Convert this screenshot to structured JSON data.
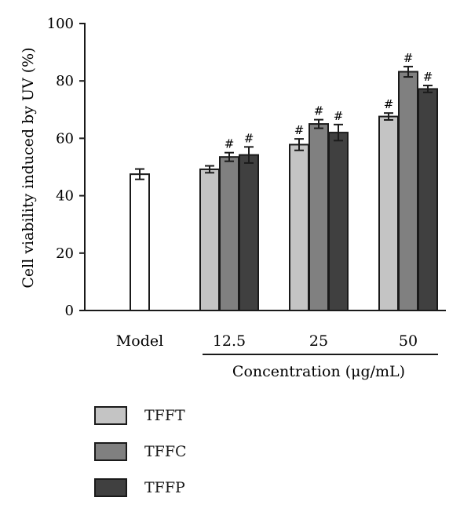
{
  "chart_data": {
    "type": "bar",
    "ylabel": "Cell viability induced by UV (%)",
    "xlabel": "Concentration (μg/mL)",
    "ylim": [
      0,
      100
    ],
    "yticks": [
      0,
      20,
      40,
      60,
      80,
      100
    ],
    "grid": false,
    "legend_position": "bottom-left",
    "control": {
      "label": "Model",
      "value": 47.5,
      "error": 1.8,
      "color": "#ffffff"
    },
    "categories": [
      "12.5",
      "25",
      "50"
    ],
    "series": [
      {
        "name": "TFFT",
        "color": "#c4c4c4",
        "values": [
          49.2,
          57.8,
          67.6
        ],
        "errors": [
          1.2,
          2.0,
          1.2
        ],
        "marks": [
          "",
          "#",
          "#"
        ]
      },
      {
        "name": "TFFC",
        "color": "#808080",
        "values": [
          53.5,
          65.0,
          83.2
        ],
        "errors": [
          1.5,
          1.5,
          1.8
        ],
        "marks": [
          "#",
          "#",
          "#"
        ]
      },
      {
        "name": "TFFP",
        "color": "#404040",
        "values": [
          54.2,
          62.0,
          77.2
        ],
        "errors": [
          2.8,
          2.8,
          1.2
        ],
        "marks": [
          "#",
          "#",
          "#"
        ]
      }
    ]
  }
}
